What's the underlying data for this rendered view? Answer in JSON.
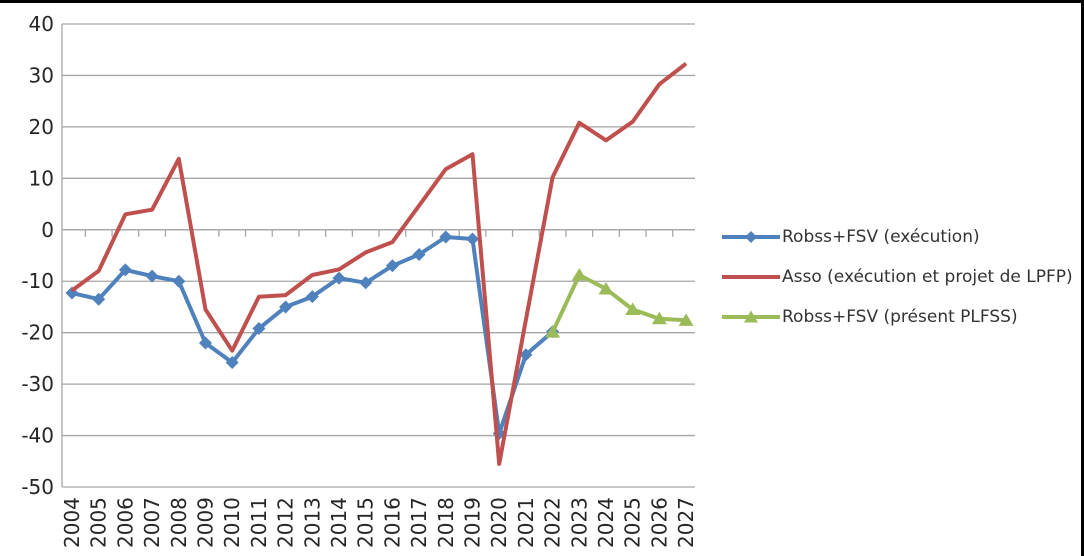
{
  "window": {
    "top_border_color": "#000000",
    "right_border_color": "#000000",
    "background": "#ffffff"
  },
  "chart_data": {
    "type": "line",
    "title": "",
    "xlabel": "",
    "ylabel": "",
    "ylim": [
      -50,
      40
    ],
    "ytick_step": 10,
    "grid": true,
    "legend_position": "right",
    "gridline_color": "#a6a6a6",
    "axis_label_color": "#262626",
    "x": [
      2004,
      2005,
      2006,
      2007,
      2008,
      2009,
      2010,
      2011,
      2012,
      2013,
      2014,
      2015,
      2016,
      2017,
      2018,
      2019,
      2020,
      2021,
      2022,
      2023,
      2024,
      2025,
      2026,
      2027
    ],
    "x_tick_labels": [
      "2004",
      "2005",
      "2006",
      "2007",
      "2008",
      "2009",
      "2010",
      "2011",
      "2012",
      "2013",
      "2014",
      "2015",
      "2016",
      "2017",
      "2018",
      "2019",
      "2020",
      "2021",
      "2022",
      "2023",
      "2024",
      "2025",
      "2026",
      "2027"
    ],
    "y_tick_labels": [
      "40",
      "30",
      "20",
      "10",
      "0",
      "-10",
      "-20",
      "-30",
      "-40",
      "-50"
    ],
    "series": [
      {
        "name": "Robss+FSV (exécution)",
        "color": "#4F81BD",
        "marker": "diamond",
        "values": [
          -12.3,
          -13.5,
          -7.8,
          -9.0,
          -10.0,
          -22.0,
          -25.8,
          -19.2,
          -15.0,
          -13.0,
          -9.4,
          -10.3,
          -7.0,
          -4.8,
          -1.4,
          -1.8,
          -39.6,
          -24.3,
          -19.8,
          null,
          null,
          null,
          null,
          null
        ]
      },
      {
        "name": "Asso (exécution et projet de LPFP)",
        "color": "#C0504D",
        "marker": "none",
        "values": [
          -11.8,
          -8.0,
          3.0,
          3.9,
          13.8,
          -15.5,
          -23.5,
          -13.0,
          -12.7,
          -8.8,
          -7.7,
          -4.4,
          -2.4,
          4.7,
          11.8,
          14.7,
          -45.5,
          -17.5,
          10.2,
          20.8,
          17.4,
          21.0,
          28.3,
          32.3
        ]
      },
      {
        "name": "Robss+FSV (présent PLFSS)",
        "color": "#9BBB59",
        "marker": "triangle",
        "values": [
          null,
          null,
          null,
          null,
          null,
          null,
          null,
          null,
          null,
          null,
          null,
          null,
          null,
          null,
          null,
          null,
          null,
          null,
          -19.9,
          -8.8,
          -11.5,
          -15.5,
          -17.3,
          -17.6
        ]
      }
    ]
  }
}
